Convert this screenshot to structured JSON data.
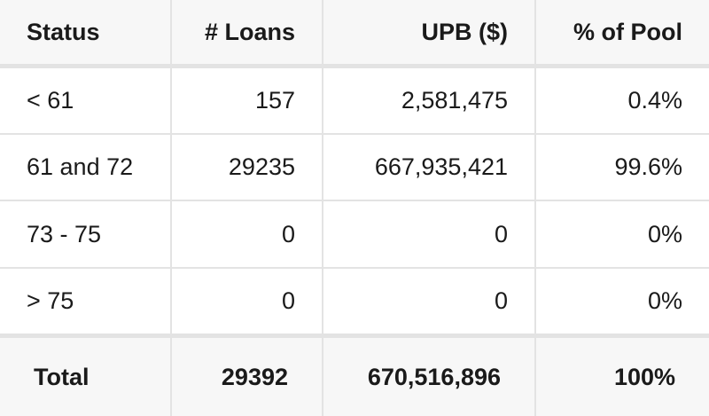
{
  "table": {
    "headers": [
      "Status",
      "# Loans",
      "UPB ($)",
      "% of Pool"
    ],
    "rows": [
      [
        "< 61",
        "157",
        "2,581,475",
        "0.4%"
      ],
      [
        "61 and 72",
        "29235",
        "667,935,421",
        "99.6%"
      ],
      [
        "73 - 75",
        "0",
        "0",
        "0%"
      ],
      [
        "> 75",
        "0",
        "0",
        "0%"
      ]
    ],
    "total": [
      "Total",
      "29392",
      "670,516,896",
      "100%"
    ]
  }
}
